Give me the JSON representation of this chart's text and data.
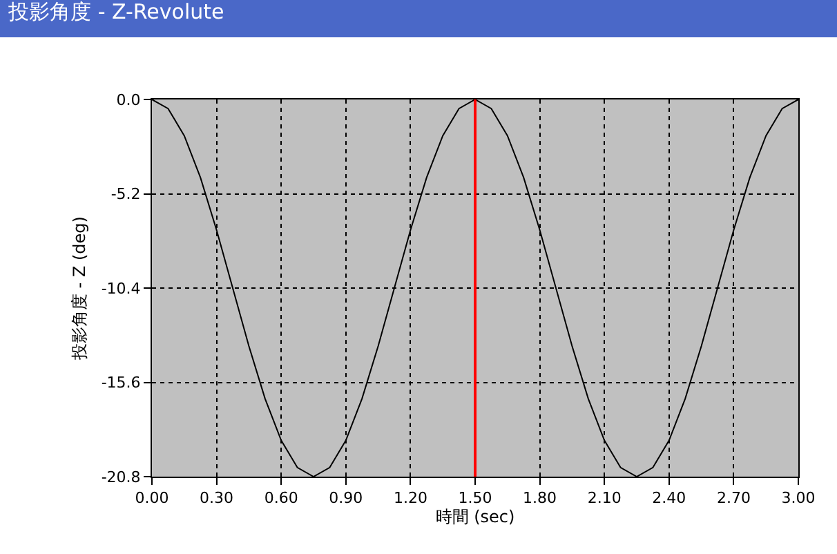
{
  "chart_data": {
    "type": "line",
    "title": "投影角度 - Z-Revolute",
    "xlabel": "時間 (sec)",
    "ylabel": "投影角度 - Z (deg)",
    "x": [
      0,
      0.075,
      0.15,
      0.225,
      0.3,
      0.375,
      0.45,
      0.525,
      0.6,
      0.675,
      0.75,
      0.825,
      0.9,
      0.975,
      1.05,
      1.125,
      1.2,
      1.275,
      1.35,
      1.425,
      1.5,
      1.575,
      1.65,
      1.725,
      1.8,
      1.875,
      1.95,
      2.025,
      2.1,
      2.175,
      2.25,
      2.325,
      2.4,
      2.475,
      2.55,
      2.625,
      2.7,
      2.775,
      2.85,
      2.925,
      3.0
    ],
    "series": [
      {
        "color": "#000000",
        "values": [
          0,
          -0.5,
          -2.0,
          -4.3,
          -7.2,
          -10.4,
          -13.6,
          -16.5,
          -18.8,
          -20.3,
          -20.8,
          -20.3,
          -18.8,
          -16.5,
          -13.6,
          -10.4,
          -7.2,
          -4.3,
          -2.0,
          -0.5,
          0,
          -0.5,
          -2.0,
          -4.3,
          -7.2,
          -10.4,
          -13.6,
          -16.5,
          -18.8,
          -20.3,
          -20.8,
          -20.3,
          -18.8,
          -16.5,
          -13.6,
          -10.4,
          -7.2,
          -4.3,
          -2.0,
          -0.5,
          0
        ]
      }
    ],
    "xlim": [
      0,
      3.0
    ],
    "xticks": [
      {
        "value": 0,
        "label": "0.00"
      },
      {
        "value": 0.3,
        "label": "0.30"
      },
      {
        "value": 0.6,
        "label": "0.60"
      },
      {
        "value": 0.9,
        "label": "0.90"
      },
      {
        "value": 1.2,
        "label": "1.20"
      },
      {
        "value": 1.5,
        "label": "1.50"
      },
      {
        "value": 1.8,
        "label": "1.80"
      },
      {
        "value": 2.1,
        "label": "2.10"
      },
      {
        "value": 2.4,
        "label": "2.40"
      },
      {
        "value": 2.7,
        "label": "2.70"
      },
      {
        "value": 3.0,
        "label": "3.00"
      }
    ],
    "ylim": [
      -20.8,
      0
    ],
    "yticks": [
      {
        "value": 0,
        "label": "0.0"
      },
      -5.2,
      -10.4,
      -15.6,
      -20.8
    ],
    "ref_lines": [
      {
        "axis": "x",
        "value": 1.5,
        "color": "#ff0000"
      }
    ],
    "grid": true,
    "marker": "none",
    "line_style": "solid"
  }
}
